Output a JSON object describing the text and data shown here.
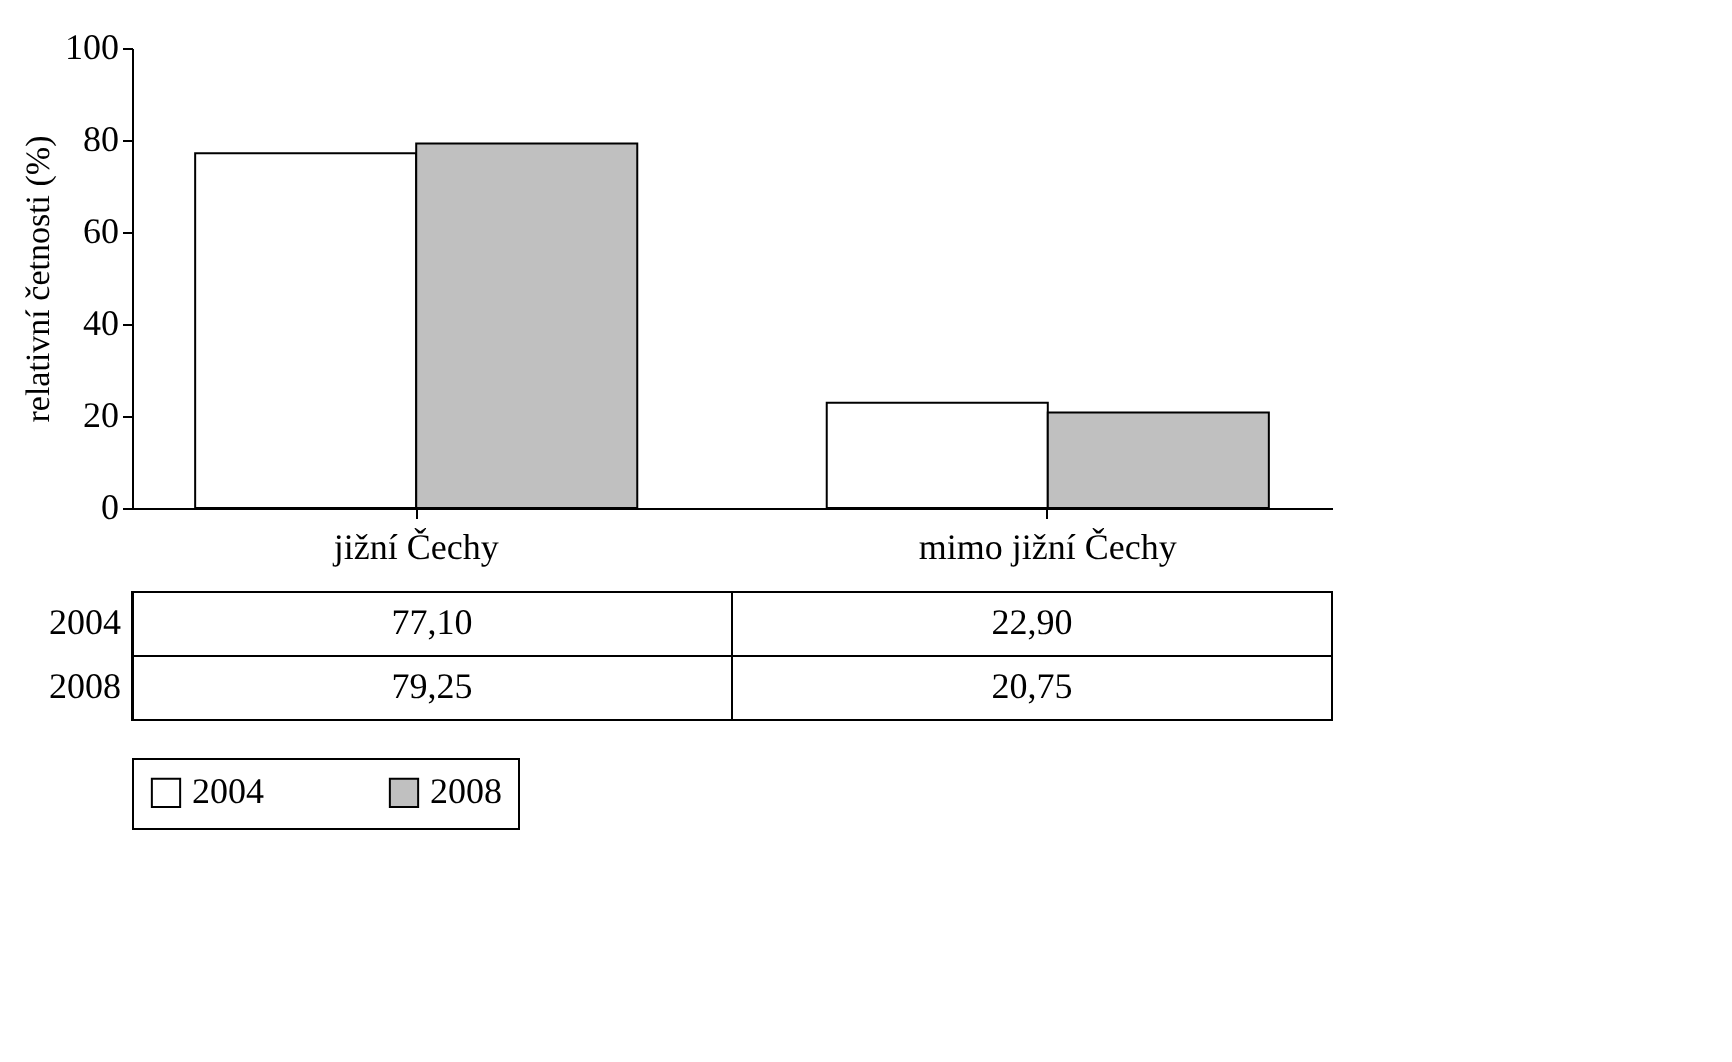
{
  "chart_data": {
    "type": "bar",
    "ylabel": "relativní četnosti (%)",
    "categories": [
      "jižní Čechy",
      "mimo jižní Čechy"
    ],
    "series": [
      {
        "name": "2004",
        "color": "#ffffff",
        "values": [
          77.1,
          22.9
        ],
        "value_labels": [
          "77,10",
          "22,90"
        ]
      },
      {
        "name": "2008",
        "color": "#c0c0c0",
        "values": [
          79.25,
          20.75
        ],
        "value_labels": [
          "79,25",
          "20,75"
        ]
      }
    ],
    "ylim": [
      0,
      100
    ],
    "yticks": [
      0,
      20,
      40,
      60,
      80,
      100
    ],
    "grid": false,
    "legend": "bottom"
  }
}
